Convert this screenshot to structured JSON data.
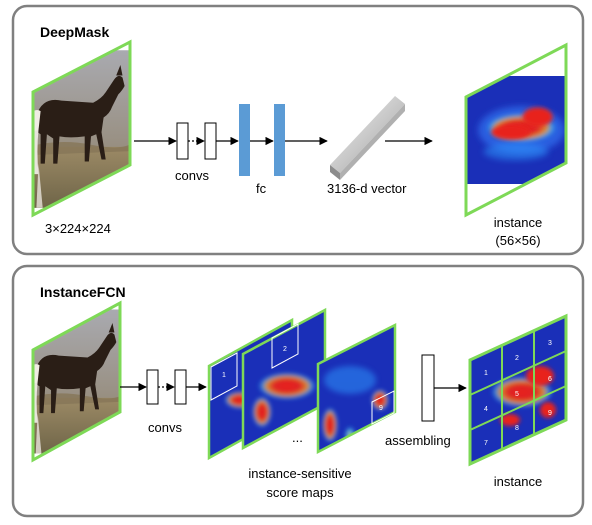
{
  "colors": {
    "frame": "#808080",
    "image_border": "#7ed957",
    "fc_bar": "#5b9bd5",
    "heat_low": "#1a2fb8",
    "heat_high": "#e8221f"
  },
  "deepmask": {
    "title": "DeepMask",
    "input_size": "3×224×224",
    "convs_label": "convs",
    "fc_label": "fc",
    "vector_label": "3136-d vector",
    "output_label_line1": "instance",
    "output_label_line2": "(56×56)"
  },
  "instancefcn": {
    "title": "InstanceFCN",
    "convs_label": "convs",
    "ellipsis": "...",
    "score_label_line1": "instance-sensitive",
    "score_label_line2": "score maps",
    "assembling_label": "assembling",
    "output_label": "instance",
    "map_numbers": [
      "1",
      "2",
      "9"
    ],
    "grid_numbers": [
      "1",
      "2",
      "3",
      "4",
      "5",
      "6",
      "7",
      "8",
      "9"
    ]
  }
}
